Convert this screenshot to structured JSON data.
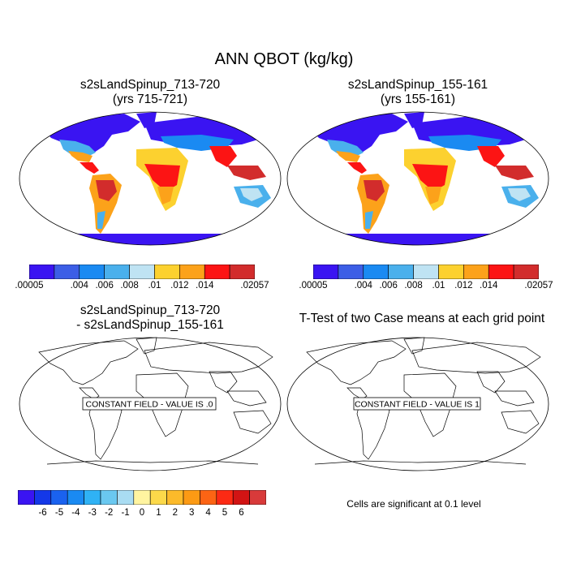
{
  "figure": {
    "title": "ANN QBOT (kg/kg)"
  },
  "panels": [
    {
      "title_line1": "s2sLandSpinup_713-720",
      "title_line2": "(yrs 715-721)"
    },
    {
      "title_line1": "s2sLandSpinup_155-161",
      "title_line2": "(yrs 155-161)"
    },
    {
      "title_line1": "s2sLandSpinup_713-720",
      "title_line2": "- s2sLandSpinup_155-161",
      "message": "CONSTANT FIELD - VALUE IS .0"
    },
    {
      "title_line1": "T-Test of two Case means at each grid point",
      "message": "CONSTANT FIELD - VALUE IS 1"
    }
  ],
  "colorbar_top": {
    "colors": [
      "#3a14f2",
      "#3c5ee6",
      "#1a8af2",
      "#4ab0ec",
      "#bfe3f3",
      "#fcd12f",
      "#fca21a",
      "#fc1414",
      "#d22c2c"
    ],
    "labels": [
      ".00005",
      "",
      ".004",
      ".006",
      ".008",
      ".01",
      ".012",
      ".014",
      "",
      ".02057"
    ]
  },
  "colorbar_diff": {
    "colors": [
      "#3a14f2",
      "#1438e8",
      "#1a62ef",
      "#1a8af2",
      "#2fb2f5",
      "#6ac8f0",
      "#a9dcf2",
      "#fff4a0",
      "#fcd94a",
      "#fcba2a",
      "#fc9a14",
      "#fc6414",
      "#fc2a14",
      "#d21414",
      "#d83a3a"
    ],
    "labels": [
      "-6",
      "-5",
      "-4",
      "-3",
      "-2",
      "-1",
      "0",
      "1",
      "2",
      "3",
      "4",
      "5",
      "6"
    ]
  },
  "note": "Cells are significant at 0.1 level"
}
